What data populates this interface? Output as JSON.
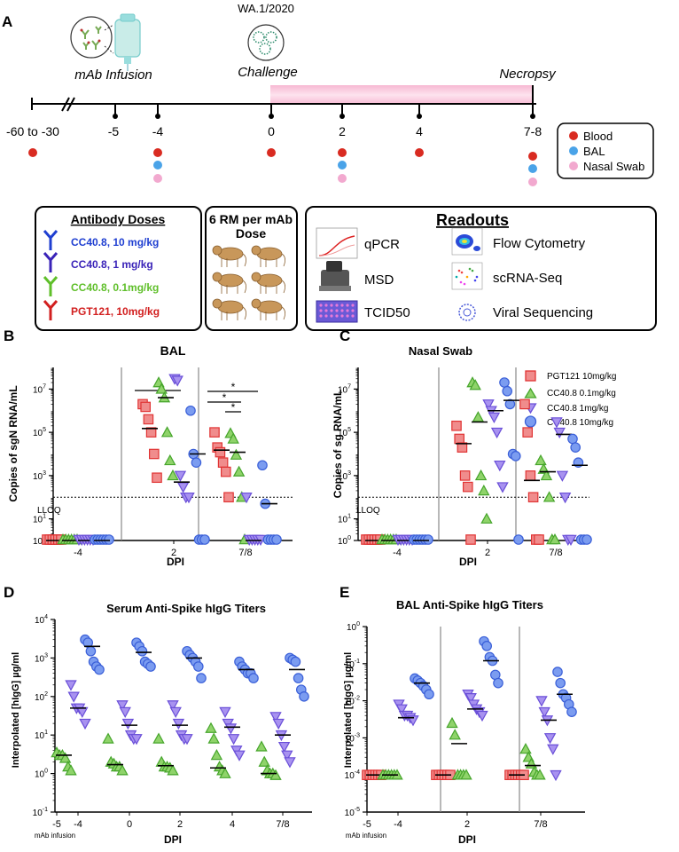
{
  "panel_labels": {
    "a": "A",
    "b": "B",
    "c": "C",
    "d": "D",
    "e": "E"
  },
  "panel_a": {
    "strain": "WA.1/2020",
    "events": {
      "infusion": "mAb Infusion",
      "challenge": "Challenge",
      "necropsy": "Necropsy"
    },
    "days": [
      "-60 to -30",
      "-5",
      "-4",
      "0",
      "2",
      "4",
      "7-8"
    ],
    "legend": [
      {
        "label": "Blood",
        "color": "#d92b21"
      },
      {
        "label": "BAL",
        "color": "#4aa3e8"
      },
      {
        "label": "Nasal Swab",
        "color": "#f2a9cf"
      }
    ],
    "doses": {
      "title": "Antibody Doses",
      "items": [
        {
          "label": "CC40.8, 10 mg/kg",
          "color": "#1f3fd1"
        },
        {
          "label": "CC40.8, 1 mg/kg",
          "color": "#3a23b8"
        },
        {
          "label": "CC40.8, 0.1mg/kg",
          "color": "#5fbf2a"
        },
        {
          "label": "PGT121, 10mg/kg",
          "color": "#d21f1f"
        }
      ]
    },
    "rm_title_1": "6 RM per mAb",
    "rm_title_2": "Dose",
    "readouts": {
      "title": "Readouts",
      "left": [
        "qPCR",
        "MSD",
        "TCID50"
      ],
      "right": [
        "Flow Cytometry",
        "scRNA-Seq",
        "Viral Sequencing"
      ]
    }
  },
  "series_legend": [
    {
      "label": "PGT121 10mg/kg",
      "shape": "square",
      "fill": "#f08c8c",
      "stroke": "#e03434"
    },
    {
      "label": "CC40.8 0.1mg/kg",
      "shape": "triangle",
      "fill": "#8fd36a",
      "stroke": "#46a52b"
    },
    {
      "label": "CC40.8 1mg/kg",
      "shape": "invtriangle",
      "fill": "#a892f0",
      "stroke": "#6a4fd8"
    },
    {
      "label": "CC40.8 10mg/kg",
      "shape": "circle",
      "fill": "#7b9cf0",
      "stroke": "#3a5fd8"
    }
  ],
  "chart_data": [
    {
      "id": "B",
      "type": "scatter",
      "title": "BAL",
      "xlabel": "DPI",
      "ylabel": "Copies of sgN RNA/mL",
      "categories": [
        "-4",
        "2",
        "7/8"
      ],
      "yscale": "log",
      "ylim": [
        1,
        100000000
      ],
      "ytick_labels": [
        "10",
        "10",
        "10",
        "10",
        "10"
      ],
      "ytick_exps": [
        "0",
        "1",
        "3",
        "5",
        "7"
      ],
      "lloq_label": "LLOQ",
      "lloq": 100,
      "significance": [
        "*",
        "*",
        "*",
        "*"
      ],
      "series": [
        {
          "name": "PGT121 10mg/kg",
          "values": [
            [
              1,
              1,
              1,
              1,
              1,
              1
            ],
            [
              2000000,
              1500000,
              400000,
              100000,
              10000,
              800
            ],
            [
              100000,
              20000,
              12000,
              4000,
              1500,
              100
            ]
          ],
          "median": [
            1,
            150000,
            15000
          ]
        },
        {
          "name": "CC40.8 0.1mg/kg",
          "values": [
            [
              1,
              1,
              1,
              1,
              1,
              1
            ],
            [
              20000000,
              10000000,
              4000000,
              100000,
              5000,
              1000
            ],
            [
              90000,
              50000,
              9000,
              1500,
              100,
              1
            ]
          ],
          "median": [
            1,
            4000000,
            12000
          ]
        },
        {
          "name": "CC40.8 1mg/kg",
          "values": [
            [
              1,
              1,
              1,
              1,
              1,
              1
            ],
            [
              30000000,
              25000000,
              1000,
              300,
              100,
              100
            ],
            [
              100,
              1,
              1,
              1,
              1,
              1
            ]
          ],
          "median": [
            1,
            500,
            1
          ]
        },
        {
          "name": "CC40.8 10mg/kg",
          "values": [
            [
              1,
              1,
              1,
              1,
              1,
              1
            ],
            [
              1000000,
              10000,
              4000,
              1,
              1,
              1
            ],
            [
              3000,
              50,
              1,
              1,
              1,
              1
            ]
          ],
          "median": [
            1,
            10000,
            50
          ]
        }
      ]
    },
    {
      "id": "C",
      "type": "scatter",
      "title": "Nasal Swab",
      "xlabel": "DPI",
      "ylabel": "Copies of sg RNA/mL",
      "categories": [
        "-4",
        "2",
        "7/8"
      ],
      "yscale": "log",
      "ylim": [
        1,
        100000000
      ],
      "ytick_labels": [
        "10",
        "10",
        "10",
        "10",
        "10"
      ],
      "ytick_exps": [
        "0",
        "1",
        "3",
        "5",
        "7"
      ],
      "lloq_label": "LLOQ",
      "lloq": 100,
      "series": [
        {
          "name": "PGT121 10mg/kg",
          "values": [
            [
              1,
              1,
              1,
              1,
              1,
              1
            ],
            [
              200000,
              50000,
              20000,
              1000,
              300,
              1
            ],
            [
              2000000,
              100000,
              1000,
              100,
              1,
              1
            ]
          ],
          "median": [
            1,
            30000,
            600
          ]
        },
        {
          "name": "CC40.8 0.1mg/kg",
          "values": [
            [
              1,
              1,
              1,
              1,
              1,
              1
            ],
            [
              20000000,
              15000000,
              500000,
              1000,
              200,
              10
            ],
            [
              5000,
              2000,
              1000,
              100,
              1,
              1
            ]
          ],
          "median": [
            1,
            300000,
            1500
          ]
        },
        {
          "name": "CC40.8 1mg/kg",
          "values": [
            [
              1,
              1,
              1,
              1,
              1,
              1
            ],
            [
              2000000,
              1000000,
              500000,
              100000,
              3000,
              300
            ],
            [
              300000,
              100000,
              1000,
              100,
              1,
              1
            ]
          ],
          "median": [
            1,
            1000000,
            80000
          ]
        },
        {
          "name": "CC40.8 10mg/kg",
          "values": [
            [
              1,
              1,
              1,
              1,
              1,
              1
            ],
            [
              20000000,
              8000000,
              2000000,
              10000,
              8000,
              1
            ],
            [
              50000,
              20000,
              4000,
              1,
              1,
              1
            ]
          ],
          "median": [
            1,
            3000000,
            3000
          ]
        }
      ]
    },
    {
      "id": "D",
      "type": "scatter",
      "title": "Serum Anti-Spike hIgG Titers",
      "xlabel": "DPI",
      "ylabel": "Interpolated [hIgG] µg/ml",
      "categories": [
        "-5",
        "-4",
        "0",
        "2",
        "4",
        "7/8"
      ],
      "sublabel": "mAb infusion",
      "yscale": "log",
      "ylim": [
        0.1,
        10000
      ],
      "ytick_labels": [
        "10",
        "10",
        "10",
        "10",
        "10",
        "10"
      ],
      "ytick_exps": [
        "-1",
        "0",
        "1",
        "2",
        "3",
        "4"
      ],
      "series": [
        {
          "name": "CC40.8 0.1mg/kg",
          "values": [
            [],
            [
              3.5,
              3,
              3,
              2.5,
              1.5,
              1.2
            ],
            [
              8,
              2,
              1.8,
              1.5,
              1.5,
              1.2
            ],
            [
              8,
              2,
              1.5,
              1.5,
              1.4,
              1.2
            ],
            [
              15,
              8,
              3,
              1.5,
              1.2,
              1
            ],
            [
              5,
              2,
              1.2,
              1,
              1,
              0.9
            ]
          ],
          "median": [
            null,
            3,
            1.7,
            1.6,
            1.4,
            1
          ]
        },
        {
          "name": "CC40.8 1mg/kg",
          "values": [
            [],
            [
              200,
              100,
              50,
              50,
              40,
              20
            ],
            [
              60,
              40,
              20,
              10,
              8,
              8
            ],
            [
              60,
              40,
              20,
              10,
              8,
              8
            ],
            [
              40,
              20,
              15,
              8,
              4,
              3
            ],
            [
              30,
              20,
              10,
              5,
              3,
              2
            ]
          ],
          "median": [
            null,
            50,
            18,
            18,
            16,
            10
          ]
        },
        {
          "name": "CC40.8 10mg/kg",
          "values": [
            [],
            [
              3000,
              2500,
              1500,
              800,
              600,
              500
            ],
            [
              2500,
              2000,
              1500,
              800,
              700,
              600
            ],
            [
              1500,
              1200,
              1000,
              800,
              600,
              300
            ],
            [
              800,
              600,
              500,
              400,
              400,
              300
            ],
            [
              1000,
              900,
              800,
              300,
              150,
              100
            ]
          ],
          "median": [
            null,
            2000,
            1400,
            1000,
            500,
            500
          ]
        }
      ]
    },
    {
      "id": "E",
      "type": "scatter",
      "title": "BAL Anti-Spike hIgG Titers",
      "xlabel": "DPI",
      "ylabel": "Interpolated [hIgG] µg/ml",
      "categories": [
        "-5",
        "-4",
        "2",
        "7/8"
      ],
      "sublabel": "mAb infusion",
      "yscale": "log",
      "ylim": [
        1e-05,
        1
      ],
      "ytick_labels": [
        "10",
        "10",
        "10",
        "10",
        "10",
        "10"
      ],
      "ytick_exps": [
        "-5",
        "-4",
        "-3",
        "-2",
        "-1",
        "0"
      ],
      "series": [
        {
          "name": "PGT121 10mg/kg",
          "values": [
            [],
            [
              0.0001,
              0.0001,
              0.0001,
              0.0001,
              0.0001,
              0.0001
            ],
            [
              0.0001,
              0.0001,
              0.0001,
              0.0001,
              0.0001,
              0.0001
            ],
            [
              0.0001,
              0.0001,
              0.0001,
              0.0001,
              0.0001,
              0.0001
            ]
          ],
          "median": [
            null,
            0.0001,
            0.0001,
            0.0001
          ]
        },
        {
          "name": "CC40.8 0.1mg/kg",
          "values": [
            [],
            [
              0.0001,
              0.0001,
              0.0001,
              0.0001,
              0.0001,
              0.0001
            ],
            [
              0.0025,
              0.0012,
              0.0001,
              0.0001,
              0.0001,
              0.0001
            ],
            [
              0.0005,
              0.0003,
              0.0002,
              0.00012,
              0.0001,
              0.0001
            ]
          ],
          "median": [
            null,
            0.0001,
            0.0007,
            0.00018
          ]
        },
        {
          "name": "CC40.8 1mg/kg",
          "values": [
            [],
            [
              0.008,
              0.006,
              0.004,
              0.004,
              0.0035,
              0.003
            ],
            [
              0.015,
              0.012,
              0.008,
              0.006,
              0.005,
              0.004
            ],
            [
              0.01,
              0.005,
              0.003,
              0.001,
              0.0005,
              0.0001
            ]
          ],
          "median": [
            null,
            0.0035,
            0.006,
            0.003
          ]
        },
        {
          "name": "CC40.8 10mg/kg",
          "values": [
            [],
            [
              0.04,
              0.035,
              0.03,
              0.025,
              0.02,
              0.015
            ],
            [
              0.4,
              0.3,
              0.15,
              0.12,
              0.05,
              0.03
            ],
            [
              0.06,
              0.03,
              0.015,
              0.012,
              0.008,
              0.005
            ]
          ],
          "median": [
            null,
            0.03,
            0.12,
            0.015
          ]
        }
      ]
    }
  ]
}
